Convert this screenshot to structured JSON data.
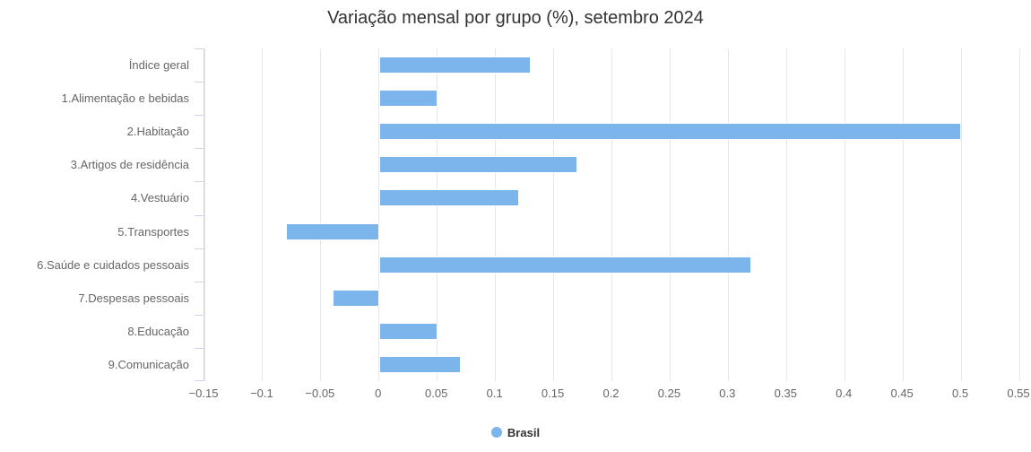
{
  "chart_data": {
    "type": "bar",
    "title": "Variação mensal por grupo (%), setembro 2024",
    "categories": [
      "Índice geral",
      "1.Alimentação e bebidas",
      "2.Habitação",
      "3.Artigos de residência",
      "4.Vestuário",
      "5.Transportes",
      "6.Saúde e cuidados pessoais",
      "7.Despesas pessoais",
      "8.Educação",
      "9.Comunicação"
    ],
    "series": [
      {
        "name": "Brasil",
        "values": [
          0.13,
          0.05,
          0.5,
          0.17,
          0.12,
          -0.08,
          0.32,
          -0.04,
          0.05,
          0.07
        ]
      }
    ],
    "xlabel": "",
    "ylabel": "",
    "grid": true,
    "value_axis": {
      "min": -0.15,
      "max": 0.55,
      "ticks": [
        -0.15,
        -0.1,
        -0.05,
        0,
        0.05,
        0.1,
        0.15,
        0.2,
        0.25,
        0.3,
        0.35,
        0.4,
        0.45,
        0.5,
        0.55
      ],
      "tick_labels": [
        "−0.15",
        "−0.1",
        "−0.05",
        "0",
        "0.05",
        "0.1",
        "0.15",
        "0.2",
        "0.25",
        "0.3",
        "0.35",
        "0.4",
        "0.45",
        "0.5",
        "0.55"
      ]
    },
    "legend": {
      "position": "bottom",
      "items": [
        {
          "label": "Brasil",
          "color": "#7cb5ec"
        }
      ]
    },
    "colors": {
      "bar": "#7cb5ec",
      "gridline": "#e6e6e6",
      "axis_line": "#ccd6eb",
      "title_text": "#333333",
      "axis_text": "#666666",
      "legend_text": "#333333",
      "background": "#ffffff"
    }
  }
}
